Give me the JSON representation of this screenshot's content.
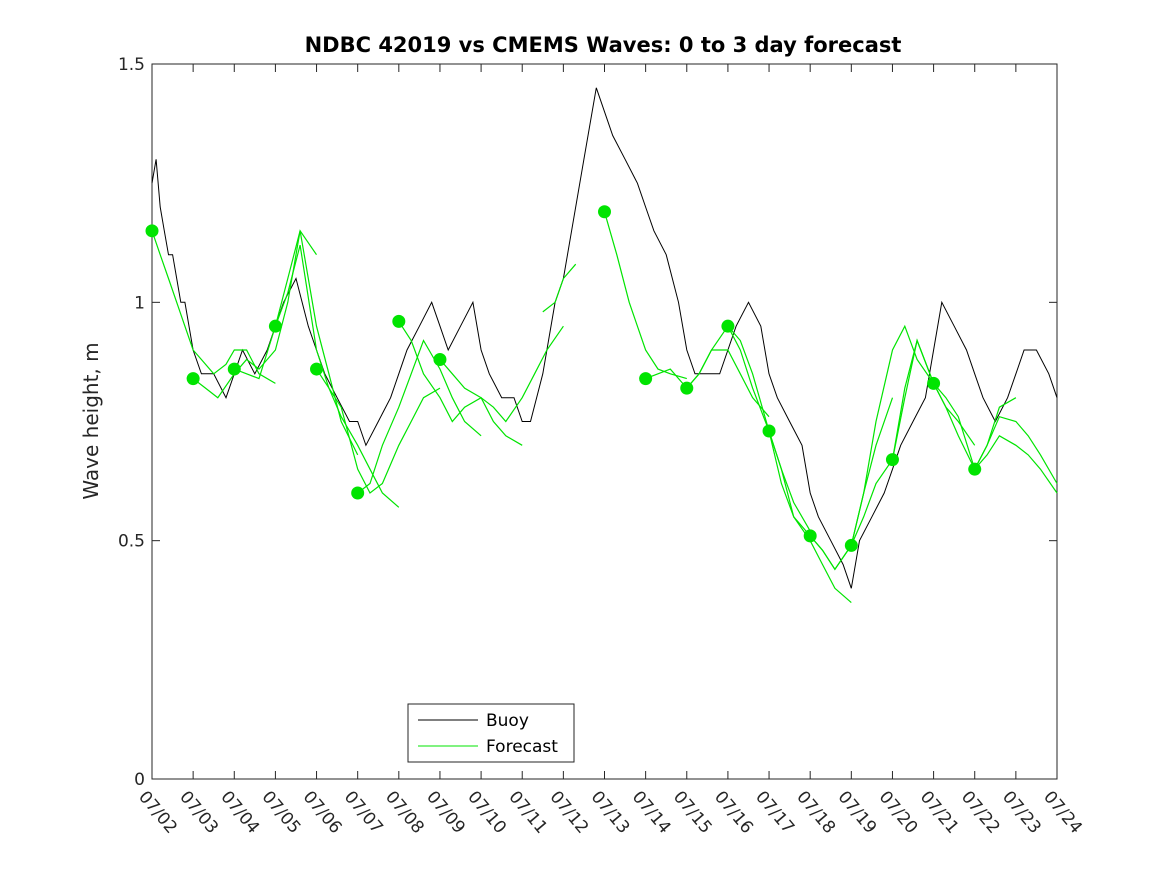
{
  "chart_data": {
    "type": "line",
    "title": "NDBC 42019 vs CMEMS Waves: 0 to 3 day forecast",
    "ylabel": "Wave height, m",
    "xlabel": "",
    "xlim": [
      0,
      22
    ],
    "ylim": [
      0,
      1.5
    ],
    "yticks": [
      0,
      0.5,
      1,
      1.5
    ],
    "ytick_labels": [
      "0",
      "0.5",
      "1",
      "1.5"
    ],
    "xtick_labels": [
      "07/02",
      "07/03",
      "07/04",
      "07/05",
      "07/06",
      "07/07",
      "07/08",
      "07/09",
      "07/10",
      "07/11",
      "07/12",
      "07/13",
      "07/14",
      "07/15",
      "07/16",
      "07/17",
      "07/18",
      "07/19",
      "07/20",
      "07/21",
      "07/22",
      "07/23",
      "07/24"
    ],
    "grid": false,
    "legend": {
      "position": "bottom-center",
      "entries": [
        "Buoy",
        "Forecast"
      ]
    },
    "colors": {
      "buoy": "#000000",
      "forecast": "#00e400"
    },
    "buoy": {
      "name": "Buoy",
      "x": [
        0,
        0.1,
        0.2,
        0.3,
        0.4,
        0.5,
        0.6,
        0.7,
        0.8,
        1,
        1.2,
        1.5,
        1.8,
        2,
        2.2,
        2.5,
        2.8,
        3,
        3.2,
        3.5,
        3.8,
        4,
        4.2,
        4.5,
        4.8,
        5,
        5.2,
        5.5,
        5.8,
        6,
        6.2,
        6.5,
        6.8,
        7,
        7.2,
        7.5,
        7.8,
        8,
        8.2,
        8.5,
        8.8,
        9,
        9.2,
        9.5,
        9.8,
        10,
        10.2,
        10.5,
        10.8,
        11,
        11.2,
        11.5,
        11.8,
        12,
        12.2,
        12.5,
        12.8,
        13,
        13.2,
        13.5,
        13.8,
        14,
        14.2,
        14.5,
        14.8,
        15,
        15.2,
        15.5,
        15.8,
        16,
        16.2,
        16.5,
        16.8,
        17,
        17.2,
        17.5,
        17.8,
        18,
        18.2,
        18.5,
        18.8,
        19,
        19.2,
        19.5,
        19.8,
        20,
        20.2,
        20.5,
        20.8,
        21,
        21.2,
        21.5,
        21.8,
        22
      ],
      "y": [
        1.25,
        1.3,
        1.2,
        1.15,
        1.1,
        1.1,
        1.05,
        1.0,
        1.0,
        0.9,
        0.85,
        0.85,
        0.8,
        0.85,
        0.9,
        0.85,
        0.9,
        0.95,
        1.0,
        1.05,
        0.95,
        0.9,
        0.85,
        0.8,
        0.75,
        0.75,
        0.7,
        0.75,
        0.8,
        0.85,
        0.9,
        0.95,
        1.0,
        0.95,
        0.9,
        0.95,
        1.0,
        0.9,
        0.85,
        0.8,
        0.8,
        0.75,
        0.75,
        0.85,
        1.0,
        1.05,
        1.15,
        1.3,
        1.45,
        1.4,
        1.35,
        1.3,
        1.25,
        1.2,
        1.15,
        1.1,
        1.0,
        0.9,
        0.85,
        0.85,
        0.85,
        0.9,
        0.95,
        1.0,
        0.95,
        0.85,
        0.8,
        0.75,
        0.7,
        0.6,
        0.55,
        0.5,
        0.45,
        0.4,
        0.5,
        0.55,
        0.6,
        0.65,
        0.7,
        0.75,
        0.8,
        0.9,
        1.0,
        0.95,
        0.9,
        0.85,
        0.8,
        0.75,
        0.8,
        0.85,
        0.9,
        0.9,
        0.85,
        0.8
      ]
    },
    "forecast_runs": [
      {
        "x": [
          0,
          0.2,
          0.4,
          0.6,
          0.8,
          1.0,
          1.2,
          1.5,
          1.8,
          2.0,
          2.3,
          2.6,
          3.0
        ],
        "y": [
          1.15,
          1.1,
          1.05,
          1.0,
          0.95,
          0.9,
          0.88,
          0.85,
          0.87,
          0.9,
          0.9,
          0.85,
          0.83
        ]
      },
      {
        "x": [
          1,
          1.3,
          1.6,
          2.0,
          2.3,
          2.6,
          3.0,
          3.3,
          3.6,
          4.0
        ],
        "y": [
          0.84,
          0.82,
          0.8,
          0.85,
          0.88,
          0.86,
          0.9,
          1.0,
          1.15,
          1.1
        ]
      },
      {
        "x": [
          2,
          2.3,
          2.6,
          3.0,
          3.3,
          3.6,
          4.0,
          4.3,
          4.6,
          5.0
        ],
        "y": [
          0.86,
          0.85,
          0.84,
          0.95,
          1.05,
          1.15,
          0.95,
          0.85,
          0.75,
          0.68
        ]
      },
      {
        "x": [
          3,
          3.3,
          3.6,
          4.0,
          4.3,
          4.6,
          5.0,
          5.3,
          5.6,
          6.0
        ],
        "y": [
          0.95,
          1.02,
          1.12,
          0.9,
          0.82,
          0.76,
          0.7,
          0.65,
          0.6,
          0.57
        ]
      },
      {
        "x": [
          4,
          4.3,
          4.6,
          5.0,
          5.3,
          5.6,
          6.0,
          6.3,
          6.6,
          7.0
        ],
        "y": [
          0.86,
          0.82,
          0.78,
          0.65,
          0.6,
          0.62,
          0.7,
          0.75,
          0.8,
          0.82
        ]
      },
      {
        "x": [
          5,
          5.3,
          5.6,
          6.0,
          6.3,
          6.6,
          7.0,
          7.3,
          7.6,
          8.0
        ],
        "y": [
          0.6,
          0.62,
          0.7,
          0.78,
          0.85,
          0.92,
          0.86,
          0.8,
          0.75,
          0.72
        ]
      },
      {
        "x": [
          6,
          6.3,
          6.6,
          7.0,
          7.3,
          7.6,
          8.0,
          8.3,
          8.6,
          9.0
        ],
        "y": [
          0.96,
          0.92,
          0.85,
          0.8,
          0.75,
          0.78,
          0.8,
          0.75,
          0.72,
          0.7
        ]
      },
      {
        "x": [
          7,
          7.3,
          7.6,
          8.0,
          8.3,
          8.6,
          9.0,
          9.3,
          9.6,
          10.0
        ],
        "y": [
          0.88,
          0.85,
          0.82,
          0.8,
          0.78,
          0.75,
          0.8,
          0.85,
          0.9,
          0.95
        ]
      },
      {
        "x": [
          9.5,
          9.8,
          10.0,
          10.3
        ],
        "y": [
          0.98,
          1.0,
          1.05,
          1.08
        ]
      },
      {
        "x": [
          11,
          11.3,
          11.6,
          12.0,
          12.3,
          12.6,
          13.0
        ],
        "y": [
          1.19,
          1.1,
          1.0,
          0.9,
          0.86,
          0.85,
          0.84
        ]
      },
      {
        "x": [
          12,
          12.3,
          12.6,
          13.0,
          13.3,
          13.6,
          14.0,
          14.3,
          14.6,
          15.0
        ],
        "y": [
          0.84,
          0.85,
          0.86,
          0.82,
          0.85,
          0.9,
          0.9,
          0.85,
          0.8,
          0.76
        ]
      },
      {
        "x": [
          13,
          13.3,
          13.6,
          14.0,
          14.3,
          14.6,
          15.0,
          15.3,
          15.6,
          16.0
        ],
        "y": [
          0.82,
          0.85,
          0.9,
          0.95,
          0.9,
          0.82,
          0.73,
          0.65,
          0.58,
          0.52
        ]
      },
      {
        "x": [
          14,
          14.3,
          14.6,
          15.0,
          15.3,
          15.6,
          16.0,
          16.3,
          16.6,
          17.0
        ],
        "y": [
          0.95,
          0.92,
          0.85,
          0.73,
          0.62,
          0.55,
          0.5,
          0.45,
          0.4,
          0.37
        ]
      },
      {
        "x": [
          15,
          15.3,
          15.6,
          16.0,
          16.3,
          16.6,
          17.0,
          17.3,
          17.6,
          18.0
        ],
        "y": [
          0.73,
          0.65,
          0.55,
          0.51,
          0.48,
          0.44,
          0.49,
          0.6,
          0.7,
          0.8
        ]
      },
      {
        "x": [
          16,
          16.3,
          16.6,
          17.0,
          17.3,
          17.6,
          18.0,
          18.3,
          18.6,
          19.0
        ],
        "y": [
          0.51,
          0.48,
          0.44,
          0.49,
          0.6,
          0.75,
          0.9,
          0.95,
          0.88,
          0.83
        ]
      },
      {
        "x": [
          17,
          17.3,
          17.6,
          18.0,
          18.3,
          18.6,
          19.0,
          19.3,
          19.6,
          20.0
        ],
        "y": [
          0.49,
          0.55,
          0.62,
          0.67,
          0.82,
          0.92,
          0.83,
          0.78,
          0.75,
          0.7
        ]
      },
      {
        "x": [
          18,
          18.3,
          18.6,
          19.0,
          19.3,
          19.6,
          20.0,
          20.3,
          20.6,
          21.0
        ],
        "y": [
          0.67,
          0.8,
          0.92,
          0.83,
          0.78,
          0.72,
          0.65,
          0.7,
          0.78,
          0.8
        ]
      },
      {
        "x": [
          19,
          19.3,
          19.6,
          20.0,
          20.3,
          20.6,
          21.0,
          21.3,
          21.6,
          22.0
        ],
        "y": [
          0.83,
          0.8,
          0.76,
          0.65,
          0.68,
          0.72,
          0.7,
          0.68,
          0.65,
          0.6
        ]
      },
      {
        "x": [
          20,
          20.3,
          20.6,
          21.0,
          21.3,
          21.6,
          22.0
        ],
        "y": [
          0.65,
          0.7,
          0.76,
          0.75,
          0.72,
          0.68,
          0.62
        ]
      }
    ],
    "forecast_starts": {
      "name": "Forecast",
      "x": [
        0,
        1,
        2,
        3,
        4,
        5,
        6,
        7,
        11,
        12,
        13,
        14,
        15,
        16,
        17,
        18,
        19,
        20
      ],
      "y": [
        1.15,
        0.84,
        0.86,
        0.95,
        0.86,
        0.6,
        0.96,
        0.88,
        1.19,
        0.84,
        0.82,
        0.95,
        0.73,
        0.51,
        0.49,
        0.67,
        0.83,
        0.65
      ]
    }
  }
}
